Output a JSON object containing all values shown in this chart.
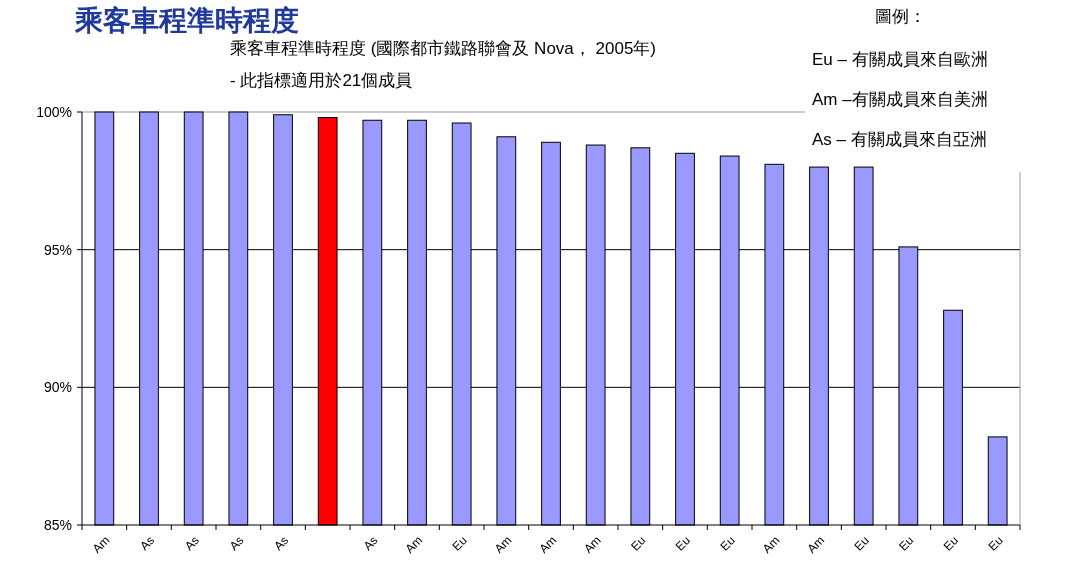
{
  "chart_data": {
    "type": "bar",
    "title": "乘客車程準時程度",
    "subtitle": "乘客車程準時程度 (國際都市鐵路聯會及 Nova， 2005年)",
    "annotations": [
      "- 此指標適用於21個成員",
      "圖例：",
      "Eu – 有關成員來自歐洲",
      "Am –有關成員來自美洲",
      "As –  有關成員來自亞洲"
    ],
    "categories": [
      "Am",
      "As",
      "As",
      "As",
      "As",
      null,
      "As",
      "Am",
      "Eu",
      "Am",
      "Am",
      "Am",
      "Eu",
      "Eu",
      "Eu",
      "Am",
      "Am",
      "Eu",
      "Eu",
      "Eu",
      "Eu"
    ],
    "values": [
      100,
      100,
      100,
      100,
      99.9,
      99.8,
      99.7,
      99.7,
      99.6,
      99.1,
      98.9,
      98.8,
      98.7,
      98.5,
      98.4,
      98.1,
      98.0,
      98.0,
      95.1,
      92.8,
      88.2
    ],
    "colors": [
      "#9999ff",
      "#9999ff",
      "#9999ff",
      "#9999ff",
      "#9999ff",
      "#ff0000",
      "#9999ff",
      "#9999ff",
      "#9999ff",
      "#9999ff",
      "#9999ff",
      "#9999ff",
      "#9999ff",
      "#9999ff",
      "#9999ff",
      "#9999ff",
      "#9999ff",
      "#9999ff",
      "#9999ff",
      "#9999ff",
      "#9999ff"
    ],
    "ylim": [
      85,
      100
    ],
    "yticks": [
      {
        "value": 85,
        "label": "85%"
      },
      {
        "value": 90,
        "label": "90%"
      },
      {
        "value": 95,
        "label": "95%"
      },
      {
        "value": 100,
        "label": "100%"
      }
    ],
    "grid": "y"
  }
}
